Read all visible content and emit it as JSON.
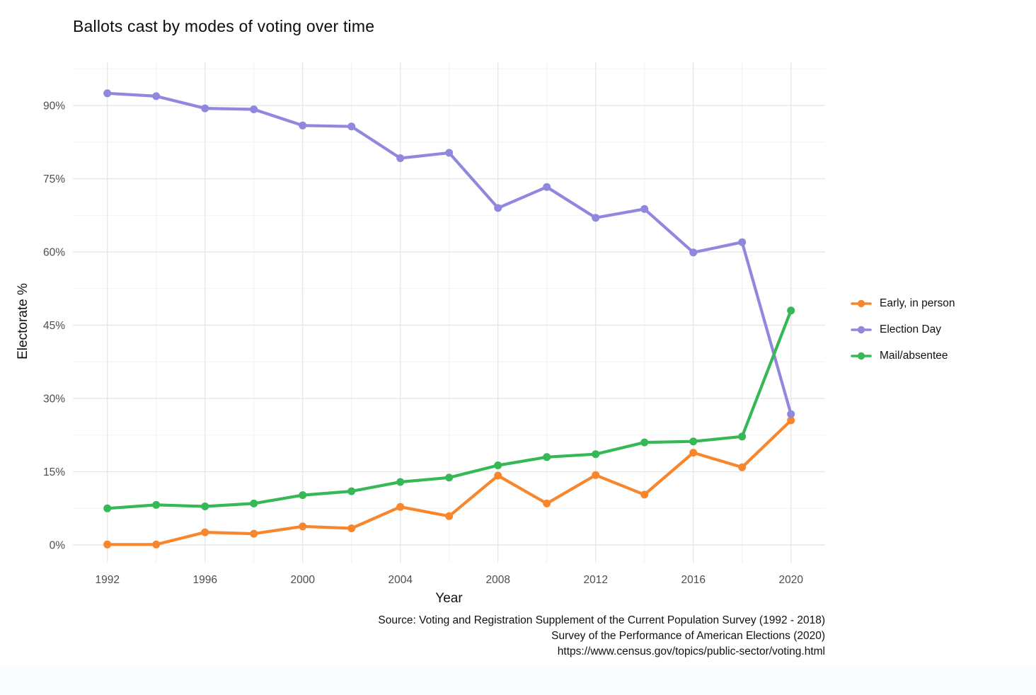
{
  "chart_data": {
    "type": "line",
    "title": "Ballots cast by modes of voting over time",
    "xlabel": "Year",
    "ylabel": "Electorate %",
    "x": [
      1992,
      1994,
      1996,
      1998,
      2000,
      2002,
      2004,
      2006,
      2008,
      2010,
      2012,
      2014,
      2016,
      2018,
      2020
    ],
    "series": [
      {
        "name": "Early, in person",
        "color": "#F8862D",
        "values": [
          0.1,
          0.1,
          2.6,
          2.3,
          3.8,
          3.4,
          7.8,
          5.9,
          14.2,
          8.5,
          14.3,
          10.3,
          18.9,
          15.9,
          25.5
        ]
      },
      {
        "name": "Election Day",
        "color": "#9088DE",
        "values": [
          92.5,
          91.9,
          89.4,
          89.2,
          85.9,
          85.7,
          79.2,
          80.3,
          69.0,
          73.3,
          67.0,
          68.8,
          59.9,
          62.0,
          26.8
        ]
      },
      {
        "name": "Mail/absentee",
        "color": "#35B855",
        "values": [
          7.5,
          8.2,
          7.9,
          8.5,
          10.2,
          11.0,
          12.9,
          13.8,
          16.3,
          18.0,
          18.6,
          21.0,
          21.2,
          22.2,
          48.0
        ]
      }
    ],
    "x_major_ticks": [
      1992,
      1996,
      2000,
      2004,
      2008,
      2012,
      2016,
      2020
    ],
    "y_major_ticks": [
      0,
      15,
      30,
      45,
      60,
      75,
      90
    ],
    "y_tick_format": "percent",
    "ylim": [
      -4,
      99
    ],
    "grid": "major+minor",
    "legend_position": "right"
  },
  "caption": {
    "lines": [
      "Source: Voting and Registration Supplement of the Current Population Survey (1992 - 2018)",
      "Survey of the Performance of American Elections (2020)",
      "https://www.census.gov/topics/public-sector/voting.html"
    ]
  },
  "colors": {
    "grid_major": "#E4E4E4",
    "grid_minor": "#F2F2F2",
    "tick_text": "#4d4d4d"
  }
}
